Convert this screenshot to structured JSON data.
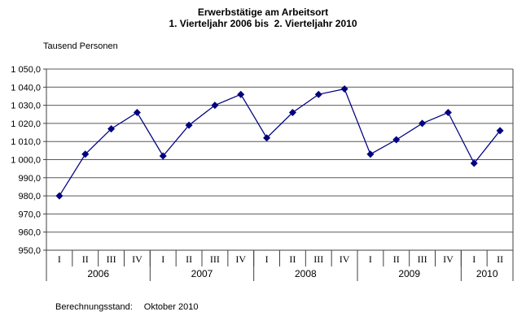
{
  "chart_data": {
    "type": "line",
    "title": "Erwerbstätige am Arbeitsort",
    "subtitle": "1. Vierteljahr 2006 bis  2. Vierteljahr 2010",
    "ylabel": "Tausend Personen",
    "ylim": [
      950,
      1050
    ],
    "ytick_step": 10,
    "ytick_labels": [
      "1 050,0",
      "1 040,0",
      "1 030,0",
      "1 020,0",
      "1 010,0",
      "1 000,0",
      "990,0",
      "980,0",
      "970,0",
      "960,0",
      "950,0"
    ],
    "grid": true,
    "legend": "none",
    "years": [
      {
        "label": "2006",
        "quarters": [
          "I",
          "II",
          "III",
          "IV"
        ]
      },
      {
        "label": "2007",
        "quarters": [
          "I",
          "II",
          "III",
          "IV"
        ]
      },
      {
        "label": "2008",
        "quarters": [
          "I",
          "II",
          "III",
          "IV"
        ]
      },
      {
        "label": "2009",
        "quarters": [
          "I",
          "II",
          "III",
          "IV"
        ]
      },
      {
        "label": "2010",
        "quarters": [
          "I",
          "II"
        ]
      }
    ],
    "series": [
      {
        "name": "Erwerbstätige am Arbeitsort (Tausend Personen)",
        "marker": "diamond",
        "values": [
          980,
          1003,
          1017,
          1026,
          1002,
          1019,
          1030,
          1036,
          1012,
          1026,
          1036,
          1039,
          1003,
          1011,
          1020,
          1026,
          998,
          1016
        ]
      }
    ],
    "footnote_label": "Berechnungsstand:",
    "footnote_value": "Oktober 2010",
    "colors": {
      "line": "#000080",
      "marker": "#000080",
      "grid": "#595959",
      "axis": "#404040",
      "text": "#000000",
      "background": "#ffffff"
    }
  }
}
